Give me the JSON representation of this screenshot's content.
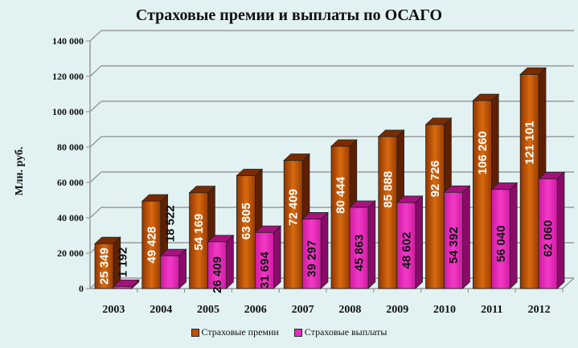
{
  "chart_data": {
    "type": "bar",
    "title": "Страховые премии и выплаты по ОСАГО",
    "xlabel": "",
    "ylabel": "Млн. руб.",
    "ylim": [
      0,
      140000
    ],
    "yticks": [
      "0",
      "20 000",
      "40 000",
      "60 000",
      "80 000",
      "100 000",
      "120 000",
      "140 000"
    ],
    "categories": [
      "2003",
      "2004",
      "2005",
      "2006",
      "2007",
      "2008",
      "2009",
      "2010",
      "2011",
      "2012"
    ],
    "series": [
      {
        "name": "Страховые премии",
        "color": "#b34a00",
        "values": [
          25349,
          49428,
          54169,
          63805,
          72409,
          80444,
          85888,
          92726,
          106260,
          121101
        ],
        "labels": [
          "25 349",
          "49 428",
          "54 169",
          "63 805",
          "72 409",
          "80 444",
          "85 888",
          "92 726",
          "106 260",
          "121 101"
        ]
      },
      {
        "name": "Страховые выплаты",
        "color": "#e020b0",
        "values": [
          1192,
          18522,
          26409,
          31694,
          39297,
          45863,
          48602,
          54392,
          56040,
          62060
        ],
        "labels": [
          "1 192",
          "18 522",
          "26 409",
          "31 694",
          "39 297",
          "45 863",
          "48 602",
          "54 392",
          "56 040",
          "62 060"
        ]
      }
    ],
    "grid": true,
    "legend_position": "bottom",
    "style": "3d-column"
  }
}
